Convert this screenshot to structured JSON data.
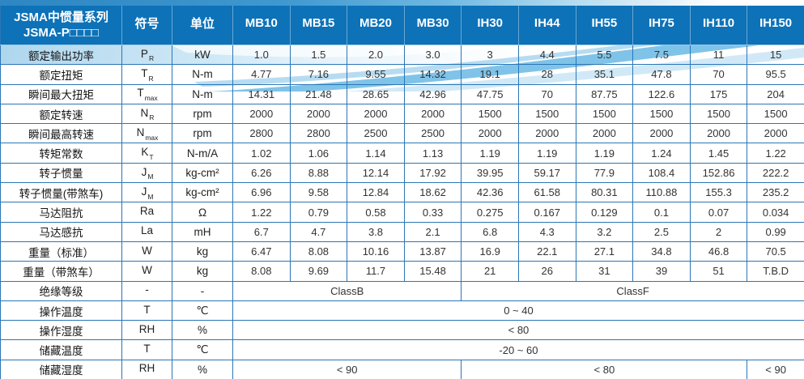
{
  "table": {
    "title_line1": "JSMA中惯量系列",
    "title_line2": "JSMA-P□□□□",
    "header": {
      "symbol_label": "符号",
      "unit_label": "单位",
      "models": [
        "MB10",
        "MB15",
        "MB20",
        "MB30",
        "IH30",
        "IH44",
        "IH55",
        "IH75",
        "IH110",
        "IH150"
      ]
    },
    "rows": [
      {
        "label": "额定输出功率",
        "symbol": "P",
        "sub": "R",
        "unit": "kW",
        "values": [
          "1.0",
          "1.5",
          "2.0",
          "3.0",
          "3",
          "4.4",
          "5.5",
          "7.5",
          "11",
          "15"
        ]
      },
      {
        "label": "额定扭矩",
        "symbol": "T",
        "sub": "R",
        "unit": "N-m",
        "values": [
          "4.77",
          "7.16",
          "9.55",
          "14.32",
          "19.1",
          "28",
          "35.1",
          "47.8",
          "70",
          "95.5"
        ]
      },
      {
        "label": "瞬间最大扭矩",
        "symbol": "T",
        "sub": "max",
        "unit": "N-m",
        "values": [
          "14.31",
          "21.48",
          "28.65",
          "42.96",
          "47.75",
          "70",
          "87.75",
          "122.6",
          "175",
          "204"
        ]
      },
      {
        "label": "额定转速",
        "symbol": "N",
        "sub": "R",
        "unit": "rpm",
        "values": [
          "2000",
          "2000",
          "2000",
          "2000",
          "1500",
          "1500",
          "1500",
          "1500",
          "1500",
          "1500"
        ]
      },
      {
        "label": "瞬间最高转速",
        "symbol": "N",
        "sub": "max",
        "unit": "rpm",
        "values": [
          "2800",
          "2800",
          "2500",
          "2500",
          "2000",
          "2000",
          "2000",
          "2000",
          "2000",
          "2000"
        ]
      },
      {
        "label": "转矩常数",
        "symbol": "K",
        "sub": "T",
        "unit": "N-m/A",
        "values": [
          "1.02",
          "1.06",
          "1.14",
          "1.13",
          "1.19",
          "1.19",
          "1.19",
          "1.24",
          "1.45",
          "1.22"
        ]
      },
      {
        "label": "转子惯量",
        "symbol": "J",
        "sub": "M",
        "unit": "kg-cm²",
        "values": [
          "6.26",
          "8.88",
          "12.14",
          "17.92",
          "39.95",
          "59.17",
          "77.9",
          "108.4",
          "152.86",
          "222.2"
        ]
      },
      {
        "label": "转子惯量(带煞车)",
        "symbol": "J",
        "sub": "M",
        "unit": "kg-cm²",
        "values": [
          "6.96",
          "9.58",
          "12.84",
          "18.62",
          "42.36",
          "61.58",
          "80.31",
          "110.88",
          "155.3",
          "235.2"
        ]
      },
      {
        "label": "马达阻抗",
        "symbol": "Ra",
        "sub": "",
        "unit": "Ω",
        "values": [
          "1.22",
          "0.79",
          "0.58",
          "0.33",
          "0.275",
          "0.167",
          "0.129",
          "0.1",
          "0.07",
          "0.034"
        ]
      },
      {
        "label": "马达感抗",
        "symbol": "La",
        "sub": "",
        "unit": "mH",
        "values": [
          "6.7",
          "4.7",
          "3.8",
          "2.1",
          "6.8",
          "4.3",
          "3.2",
          "2.5",
          "2",
          "0.99"
        ]
      },
      {
        "label": "重量（标准）",
        "symbol": "W",
        "sub": "",
        "unit": "kg",
        "values": [
          "6.47",
          "8.08",
          "10.16",
          "13.87",
          "16.9",
          "22.1",
          "27.1",
          "34.8",
          "46.8",
          "70.5"
        ]
      },
      {
        "label": "重量（带煞车）",
        "symbol": "W",
        "sub": "",
        "unit": "kg",
        "values": [
          "8.08",
          "9.69",
          "11.7",
          "15.48",
          "21",
          "26",
          "31",
          "39",
          "51",
          "T.B.D"
        ]
      },
      {
        "label": "绝缘等级",
        "symbol": "-",
        "sub": "",
        "unit": "-",
        "spans": [
          {
            "text": "ClassB",
            "cols": 4
          },
          {
            "text": "ClassF",
            "cols": 6
          }
        ]
      },
      {
        "label": "操作温度",
        "symbol": "T",
        "sub": "",
        "unit": "℃",
        "spans": [
          {
            "text": "0 ~ 40",
            "cols": 10
          }
        ]
      },
      {
        "label": "操作湿度",
        "symbol": "RH",
        "sub": "",
        "unit": "%",
        "spans": [
          {
            "text": "< 80",
            "cols": 10
          }
        ]
      },
      {
        "label": "储藏温度",
        "symbol": "T",
        "sub": "",
        "unit": "℃",
        "spans": [
          {
            "text": "-20 ~ 60",
            "cols": 10
          }
        ]
      },
      {
        "label": "储藏湿度",
        "symbol": "RH",
        "sub": "",
        "unit": "%",
        "spans": [
          {
            "text": "< 90",
            "cols": 4
          },
          {
            "text": "< 80",
            "cols": 5
          },
          {
            "text": "< 90",
            "cols": 1
          }
        ]
      }
    ],
    "colors": {
      "header_bg": "#0d72b8",
      "header_text": "#ffffff",
      "border": "#2b76b5",
      "body_text": "#333333",
      "swoosh": "#5fb4e3",
      "swoosh_light": "#b9ddf2"
    }
  }
}
